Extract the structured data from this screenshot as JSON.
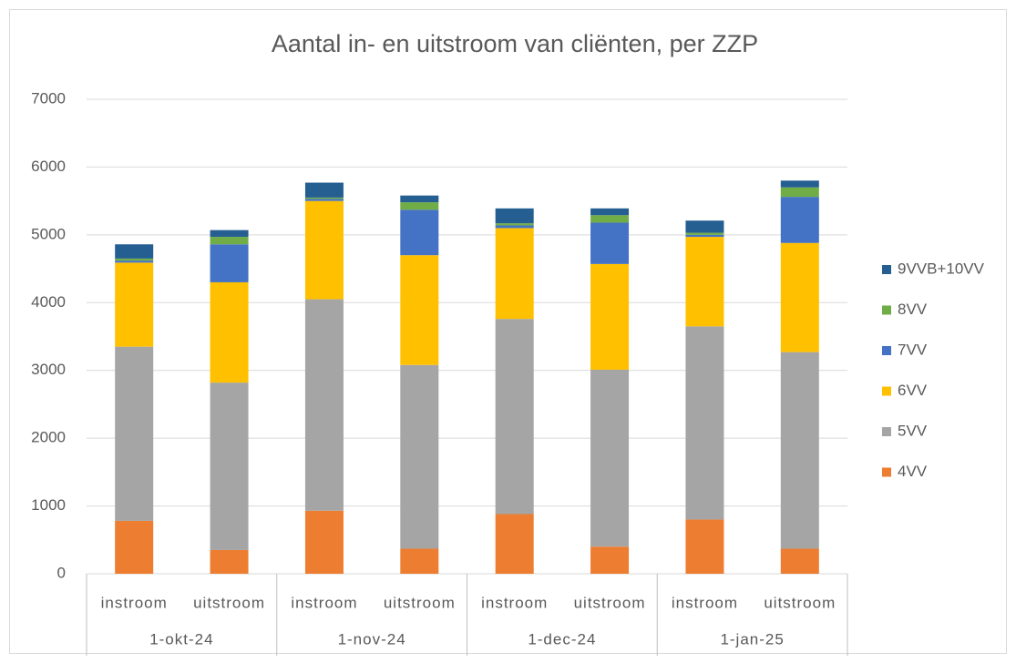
{
  "chart_data": {
    "type": "stacked_bar",
    "title": "Aantal in- en uitstroom van cliënten, per ZZP",
    "categories": [
      "instroom",
      "uitstroom",
      "instroom",
      "uitstroom",
      "instroom",
      "uitstroom",
      "instroom",
      "uitstroom"
    ],
    "groups": [
      "1-okt-24",
      "1-nov-24",
      "1-dec-24",
      "1-jan-25"
    ],
    "series": [
      {
        "name": "4VV",
        "color": "#ed7d31",
        "values": [
          780,
          350,
          930,
          370,
          880,
          400,
          800,
          370
        ]
      },
      {
        "name": "5VV",
        "color": "#a5a5a5",
        "values": [
          2570,
          2470,
          3120,
          2710,
          2880,
          2610,
          2850,
          2900
        ]
      },
      {
        "name": "6VV",
        "color": "#ffc000",
        "values": [
          1240,
          1480,
          1450,
          1620,
          1340,
          1560,
          1320,
          1610
        ]
      },
      {
        "name": "7VV",
        "color": "#4472c4",
        "values": [
          30,
          560,
          30,
          670,
          40,
          610,
          30,
          680
        ]
      },
      {
        "name": "8VV",
        "color": "#70ad47",
        "values": [
          30,
          110,
          20,
          110,
          30,
          110,
          30,
          140
        ]
      },
      {
        "name": "9VVB+10VV",
        "color": "#255e91",
        "values": [
          210,
          100,
          220,
          100,
          220,
          100,
          180,
          100
        ]
      }
    ],
    "ylim": [
      0,
      7000
    ],
    "yticks": [
      0,
      1000,
      2000,
      3000,
      4000,
      5000,
      6000,
      7000
    ],
    "grid": true,
    "legend": "right"
  }
}
